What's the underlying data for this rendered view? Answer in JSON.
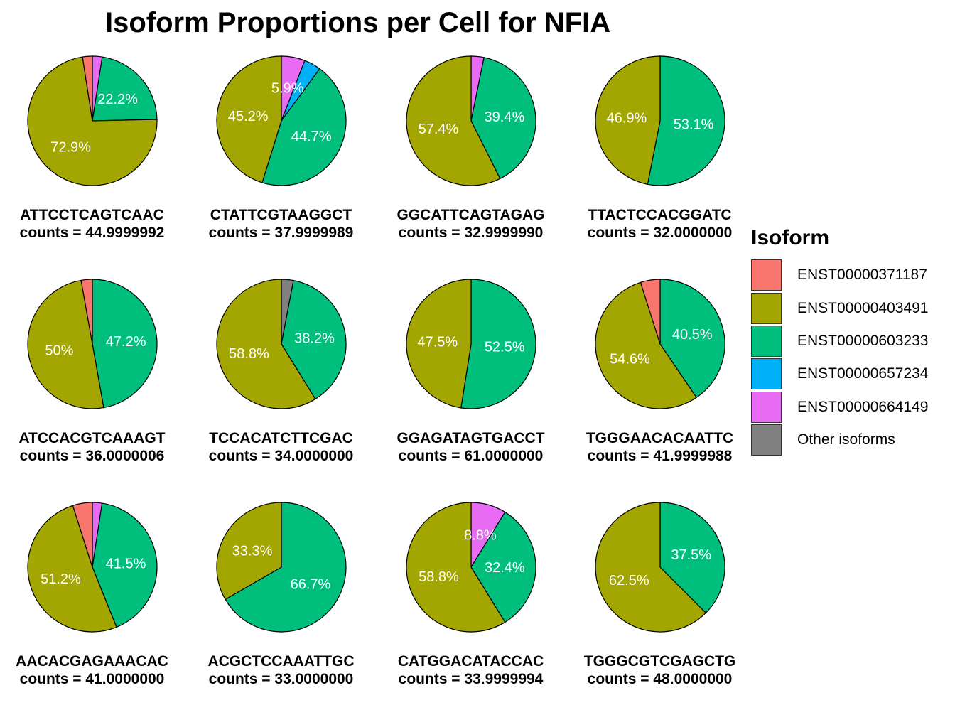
{
  "chart_data": {
    "type": "pie",
    "title": "Isoform Proportions per Cell for NFIA",
    "legend": {
      "title": "Isoform",
      "placement": "right",
      "entries": [
        {
          "name": "ENST00000371187",
          "color": "#F8766D"
        },
        {
          "name": "ENST00000403491",
          "color": "#A3A500"
        },
        {
          "name": "ENST00000603233",
          "color": "#00BF7D"
        },
        {
          "name": "ENST00000657234",
          "color": "#00B0F6"
        },
        {
          "name": "ENST00000664149",
          "color": "#E76BF3"
        },
        {
          "name": "Other isoforms",
          "color": "#808080"
        }
      ]
    },
    "slice_order_clockwise_from_top": [
      "Other isoforms",
      "ENST00000664149",
      "ENST00000657234",
      "ENST00000603233",
      "ENST00000403491",
      "ENST00000371187"
    ],
    "panels": [
      {
        "cell": "ATTCCTCAGTCAAC",
        "counts_label": "counts = 44.9999992",
        "slices": {
          "ENST00000371187": 2.45,
          "ENST00000403491": 72.9,
          "ENST00000603233": 22.2,
          "ENST00000664149": 2.45
        },
        "labels": {
          "ENST00000403491": "72.9%",
          "ENST00000603233": "22.2%"
        }
      },
      {
        "cell": "CTATTCGTAAGGCT",
        "counts_label": "counts = 37.9999989",
        "slices": {
          "ENST00000403491": 45.2,
          "ENST00000603233": 44.7,
          "ENST00000657234": 4.2,
          "ENST00000664149": 5.9
        },
        "labels": {
          "ENST00000403491": "45.2%",
          "ENST00000603233": "44.7%",
          "ENST00000664149": "5.9%"
        }
      },
      {
        "cell": "GGCATTCAGTAGAG",
        "counts_label": "counts = 32.9999990",
        "slices": {
          "ENST00000403491": 57.4,
          "ENST00000603233": 39.4,
          "ENST00000664149": 3.2
        },
        "labels": {
          "ENST00000403491": "57.4%",
          "ENST00000603233": "39.4%"
        }
      },
      {
        "cell": "TTACTCCACGGATC",
        "counts_label": "counts = 32.0000000",
        "slices": {
          "ENST00000403491": 46.9,
          "ENST00000603233": 53.1
        },
        "labels": {
          "ENST00000403491": "46.9%",
          "ENST00000603233": "53.1%"
        }
      },
      {
        "cell": "ATCCACGTCAAAGT",
        "counts_label": "counts = 36.0000006",
        "slices": {
          "ENST00000371187": 2.8,
          "ENST00000403491": 50.0,
          "ENST00000603233": 47.2
        },
        "labels": {
          "ENST00000403491": "50%",
          "ENST00000603233": "47.2%"
        }
      },
      {
        "cell": "TCCACATCTTCGAC",
        "counts_label": "counts = 34.0000000",
        "slices": {
          "Other isoforms": 3.0,
          "ENST00000403491": 58.8,
          "ENST00000603233": 38.2
        },
        "labels": {
          "ENST00000403491": "58.8%",
          "ENST00000603233": "38.2%"
        }
      },
      {
        "cell": "GGAGATAGTGACCT",
        "counts_label": "counts = 61.0000000",
        "slices": {
          "ENST00000403491": 47.5,
          "ENST00000603233": 52.5
        },
        "labels": {
          "ENST00000403491": "47.5%",
          "ENST00000603233": "52.5%"
        }
      },
      {
        "cell": "TGGGAACACAATTC",
        "counts_label": "counts = 41.9999988",
        "slices": {
          "ENST00000371187": 4.9,
          "ENST00000403491": 54.6,
          "ENST00000603233": 40.5
        },
        "labels": {
          "ENST00000403491": "54.6%",
          "ENST00000603233": "40.5%"
        }
      },
      {
        "cell": "AACACGAGAAACAC",
        "counts_label": "counts = 41.0000000",
        "slices": {
          "ENST00000371187": 4.9,
          "ENST00000403491": 51.2,
          "ENST00000603233": 41.5,
          "ENST00000664149": 2.4
        },
        "labels": {
          "ENST00000403491": "51.2%",
          "ENST00000603233": "41.5%"
        }
      },
      {
        "cell": "ACGCTCCAAATTGC",
        "counts_label": "counts = 33.0000000",
        "slices": {
          "ENST00000403491": 33.3,
          "ENST00000603233": 66.7
        },
        "labels": {
          "ENST00000403491": "33.3%",
          "ENST00000603233": "66.7%"
        }
      },
      {
        "cell": "CATGGACATACCAC",
        "counts_label": "counts = 33.9999994",
        "slices": {
          "ENST00000403491": 58.8,
          "ENST00000603233": 32.4,
          "ENST00000664149": 8.8
        },
        "labels": {
          "ENST00000403491": "58.8%",
          "ENST00000603233": "32.4%",
          "ENST00000664149": "8.8%"
        }
      },
      {
        "cell": "TGGGCGTCGAGCTG",
        "counts_label": "counts = 48.0000000",
        "slices": {
          "ENST00000403491": 62.5,
          "ENST00000603233": 37.5
        },
        "labels": {
          "ENST00000403491": "62.5%",
          "ENST00000603233": "37.5%"
        }
      }
    ]
  }
}
